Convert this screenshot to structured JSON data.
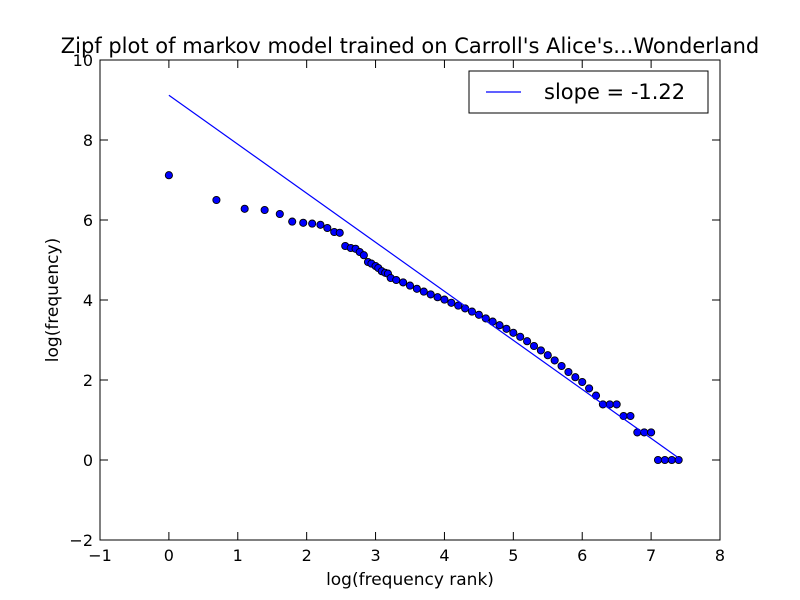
{
  "chart_data": {
    "type": "scatter",
    "title": "Zipf plot of markov model trained on Carroll's Alice's...Wonderland",
    "xlabel": "log(frequency rank)",
    "ylabel": "log(frequency)",
    "xlim": [
      -1,
      8
    ],
    "ylim": [
      -2,
      10
    ],
    "xticks": [
      -1,
      0,
      1,
      2,
      3,
      4,
      5,
      6,
      7,
      8
    ],
    "xtick_labels": [
      "−1",
      "0",
      "1",
      "2",
      "3",
      "4",
      "5",
      "6",
      "7",
      "8"
    ],
    "yticks": [
      -2,
      0,
      2,
      4,
      6,
      8,
      10
    ],
    "ytick_labels": [
      "−2",
      "0",
      "2",
      "4",
      "6",
      "8",
      "10"
    ],
    "grid": false,
    "legend_position": "top-right",
    "series": [
      {
        "kind": "scatter",
        "color": "#0000ff",
        "edge_color": "#000000",
        "points": [
          [
            0.0,
            7.12
          ],
          [
            0.69,
            6.5
          ],
          [
            1.1,
            6.28
          ],
          [
            1.39,
            6.25
          ],
          [
            1.61,
            6.15
          ],
          [
            1.79,
            5.96
          ],
          [
            1.95,
            5.93
          ],
          [
            2.08,
            5.91
          ],
          [
            2.2,
            5.88
          ],
          [
            2.3,
            5.8
          ],
          [
            2.4,
            5.7
          ],
          [
            2.48,
            5.68
          ],
          [
            2.56,
            5.35
          ],
          [
            2.64,
            5.3
          ],
          [
            2.71,
            5.28
          ],
          [
            2.77,
            5.2
          ],
          [
            2.83,
            5.12
          ],
          [
            2.89,
            4.95
          ],
          [
            2.94,
            4.91
          ],
          [
            3.0,
            4.85
          ],
          [
            3.04,
            4.8
          ],
          [
            3.09,
            4.72
          ],
          [
            3.14,
            4.68
          ],
          [
            3.18,
            4.66
          ],
          [
            3.22,
            4.55
          ],
          [
            3.3,
            4.5
          ],
          [
            3.4,
            4.44
          ],
          [
            3.5,
            4.36
          ],
          [
            3.6,
            4.28
          ],
          [
            3.7,
            4.21
          ],
          [
            3.8,
            4.14
          ],
          [
            3.9,
            4.07
          ],
          [
            4.0,
            4.01
          ],
          [
            4.1,
            3.93
          ],
          [
            4.2,
            3.86
          ],
          [
            4.3,
            3.79
          ],
          [
            4.4,
            3.71
          ],
          [
            4.5,
            3.63
          ],
          [
            4.6,
            3.54
          ],
          [
            4.7,
            3.46
          ],
          [
            4.8,
            3.37
          ],
          [
            4.9,
            3.28
          ],
          [
            5.0,
            3.18
          ],
          [
            5.1,
            3.08
          ],
          [
            5.2,
            2.97
          ],
          [
            5.3,
            2.85
          ],
          [
            5.4,
            2.74
          ],
          [
            5.5,
            2.62
          ],
          [
            5.6,
            2.49
          ],
          [
            5.7,
            2.35
          ],
          [
            5.8,
            2.2
          ],
          [
            5.9,
            2.07
          ],
          [
            6.0,
            1.95
          ],
          [
            6.1,
            1.79
          ],
          [
            6.2,
            1.61
          ],
          [
            6.3,
            1.39
          ],
          [
            6.4,
            1.39
          ],
          [
            6.5,
            1.39
          ],
          [
            6.6,
            1.1
          ],
          [
            6.7,
            1.1
          ],
          [
            6.8,
            0.69
          ],
          [
            6.9,
            0.69
          ],
          [
            7.0,
            0.69
          ],
          [
            7.1,
            0.0
          ],
          [
            7.2,
            0.0
          ],
          [
            7.3,
            0.0
          ],
          [
            7.4,
            0.0
          ]
        ]
      },
      {
        "kind": "line",
        "name": "slope = -1.22",
        "color": "#0000ff",
        "points": [
          [
            0.0,
            9.12
          ],
          [
            7.4,
            0.05
          ]
        ]
      }
    ]
  }
}
